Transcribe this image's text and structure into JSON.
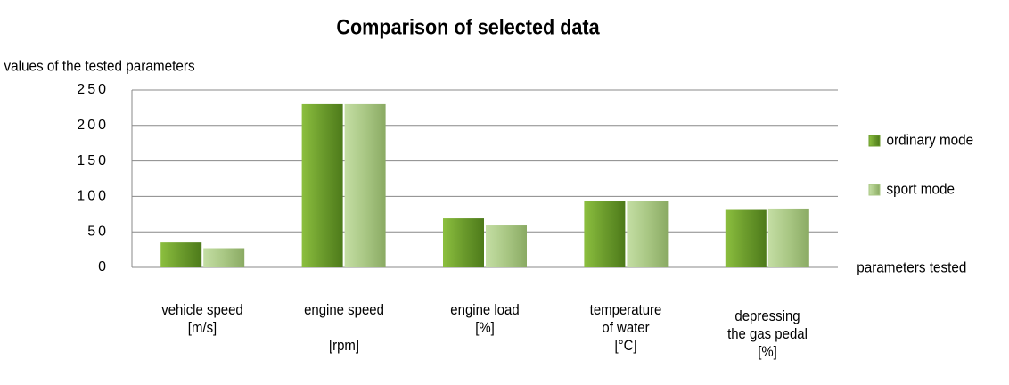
{
  "chart_data": {
    "type": "bar",
    "title": "Comparison of selected data",
    "y_label": "values of the tested parameters",
    "x_label": "parameters tested",
    "categories": [
      "vehicle speed\n[m/s]",
      "engine speed\n\n[rpm]",
      "engine load\n[%]",
      "temperature\nof water\n[°C]",
      "depressing\nthe gas pedal\n[%]"
    ],
    "series": [
      {
        "name": "ordinary mode",
        "color": "#6b9b2c",
        "values": [
          35,
          230,
          69,
          93,
          81
        ]
      },
      {
        "name": "sport mode",
        "color": "#a9c784",
        "values": [
          27,
          230,
          59,
          93,
          83
        ]
      }
    ],
    "ylim": [
      0,
      250
    ],
    "yticks": [
      0,
      50,
      100,
      150,
      200,
      250
    ],
    "grid": true,
    "legend": "right"
  }
}
